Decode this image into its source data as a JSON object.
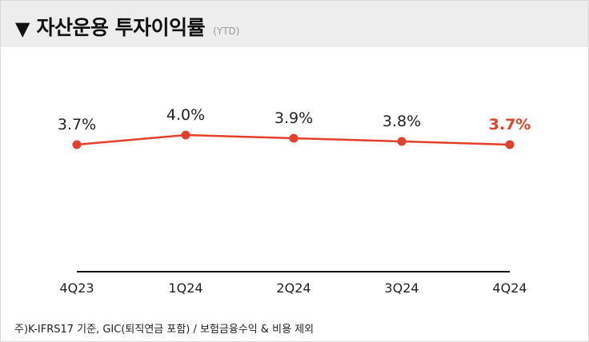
{
  "header": {
    "marker": "▼",
    "title": "자산운용 투자이익률",
    "unit_note": "(YTD)"
  },
  "chart_data": {
    "type": "line",
    "title": "자산운용 투자이익률",
    "subtitle": "(YTD)",
    "categories": [
      "4Q23",
      "1Q24",
      "2Q24",
      "3Q24",
      "4Q24"
    ],
    "series": [
      {
        "values": [
          3.7,
          4.0,
          3.9,
          3.8,
          3.7
        ]
      }
    ],
    "value_labels": [
      "3.7%",
      "4.0%",
      "3.9%",
      "3.8%",
      "3.7%"
    ],
    "highlight_index": 4,
    "ylim": [
      0,
      5
    ],
    "grid": false,
    "colors": {
      "line": "#e3402b",
      "highlight_label": "#e3402b",
      "label": "#222222"
    }
  },
  "footnote": "주)K-IFRS17 기준, GIC(퇴직연금 포함) / 보험금융수익 & 비용 제외"
}
